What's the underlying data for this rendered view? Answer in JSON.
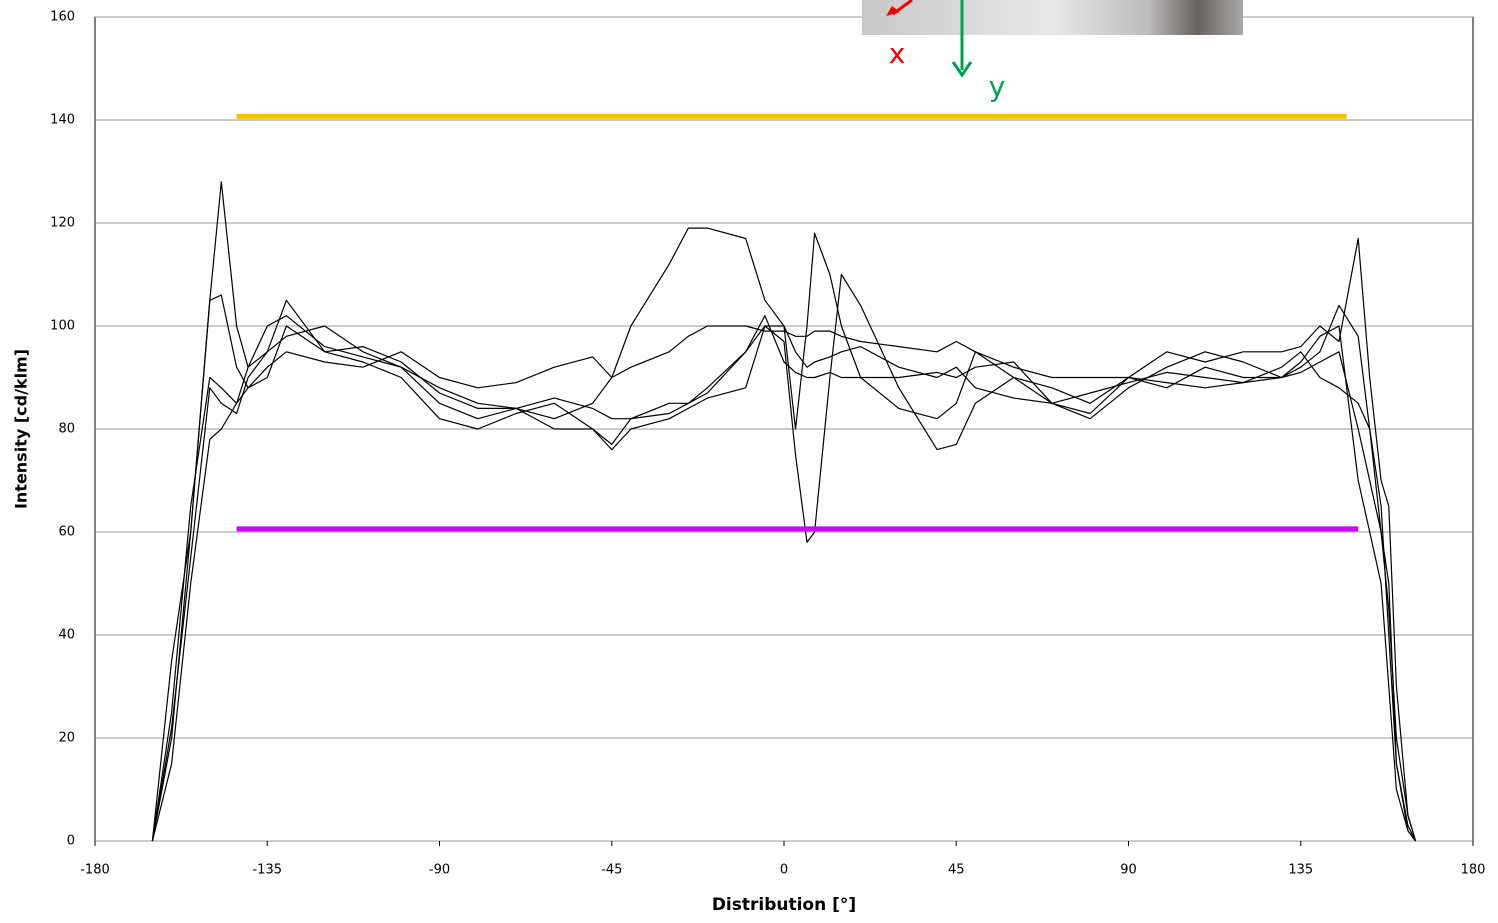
{
  "chart_data": {
    "type": "line",
    "xlabel": "Distribution [°]",
    "ylabel": "Intensity [cd/klm]",
    "xlim": [
      -180,
      180
    ],
    "xticks": [
      -180,
      -135,
      -90,
      -45,
      0,
      45,
      90,
      135,
      180
    ],
    "ylim": [
      0,
      160
    ],
    "yticks": [
      0,
      20,
      40,
      60,
      80,
      100,
      120,
      140,
      160
    ],
    "grid": true,
    "annotations": [
      "x",
      "y"
    ],
    "x": [
      -165,
      -160,
      -155,
      -150,
      -147,
      -143,
      -140,
      -135,
      -130,
      -120,
      -110,
      -100,
      -90,
      -80,
      -70,
      -60,
      -50,
      -45,
      -40,
      -30,
      -25,
      -20,
      -10,
      -5,
      0,
      3,
      6,
      8,
      12,
      15,
      20,
      30,
      40,
      45,
      50,
      60,
      70,
      80,
      90,
      100,
      110,
      120,
      130,
      135,
      140,
      145,
      150,
      153,
      156,
      158,
      160,
      163,
      165
    ],
    "series": [
      {
        "color": "#000000",
        "values": [
          0,
          20,
          60,
          105,
          128,
          100,
          92,
          95,
          98,
          100,
          95,
          92,
          88,
          85,
          84,
          82,
          85,
          90,
          100,
          112,
          119,
          119,
          117,
          105,
          100,
          95,
          92,
          93,
          94,
          95,
          96,
          92,
          90,
          92,
          88,
          86,
          85,
          87,
          89,
          91,
          90,
          89,
          92,
          95,
          90,
          88,
          85,
          80,
          65,
          40,
          15,
          3,
          0
        ]
      },
      {
        "color": "#000000",
        "values": [
          0,
          25,
          65,
          90,
          88,
          85,
          92,
          100,
          102,
          96,
          94,
          92,
          85,
          82,
          84,
          80,
          80,
          77,
          82,
          85,
          85,
          87,
          95,
          100,
          97,
          75,
          58,
          60,
          90,
          110,
          104,
          88,
          76,
          77,
          85,
          90,
          88,
          85,
          90,
          88,
          92,
          90,
          90,
          93,
          98,
          100,
          70,
          60,
          50,
          30,
          10,
          2,
          0
        ]
      },
      {
        "color": "#000000",
        "values": [
          0,
          22,
          55,
          88,
          85,
          83,
          90,
          95,
          105,
          95,
          93,
          90,
          82,
          80,
          83,
          85,
          80,
          76,
          80,
          82,
          84,
          86,
          88,
          100,
          100,
          80,
          100,
          118,
          110,
          100,
          90,
          84,
          82,
          85,
          95,
          90,
          85,
          82,
          88,
          92,
          95,
          93,
          90,
          92,
          95,
          104,
          98,
          80,
          60,
          45,
          20,
          5,
          0
        ]
      },
      {
        "color": "#000000",
        "values": [
          0,
          15,
          50,
          78,
          80,
          85,
          88,
          92,
          95,
          93,
          92,
          95,
          90,
          88,
          89,
          92,
          94,
          90,
          92,
          95,
          98,
          100,
          100,
          99,
          99,
          98,
          98,
          99,
          99,
          98,
          97,
          96,
          95,
          97,
          95,
          92,
          90,
          90,
          90,
          89,
          88,
          89,
          90,
          91,
          93,
          95,
          80,
          70,
          60,
          50,
          15,
          2,
          0
        ]
      },
      {
        "color": "#000000",
        "values": [
          0,
          35,
          60,
          105,
          106,
          92,
          88,
          90,
          100,
          95,
          96,
          93,
          87,
          84,
          84,
          86,
          84,
          82,
          82,
          83,
          85,
          88,
          95,
          102,
          93,
          91,
          90,
          90,
          91,
          90,
          90,
          90,
          91,
          90,
          92,
          93,
          85,
          83,
          90,
          95,
          93,
          95,
          95,
          96,
          100,
          97,
          117,
          90,
          70,
          65,
          30,
          5,
          0
        ]
      },
      {
        "color": "#ffc000",
        "width": 5,
        "x": [
          -143,
          147
        ],
        "values": [
          140.7,
          140.7
        ]
      },
      {
        "color": "#cc00ff",
        "width": 5,
        "x": [
          -143,
          150
        ],
        "values": [
          60.6,
          60.6
        ]
      }
    ]
  }
}
